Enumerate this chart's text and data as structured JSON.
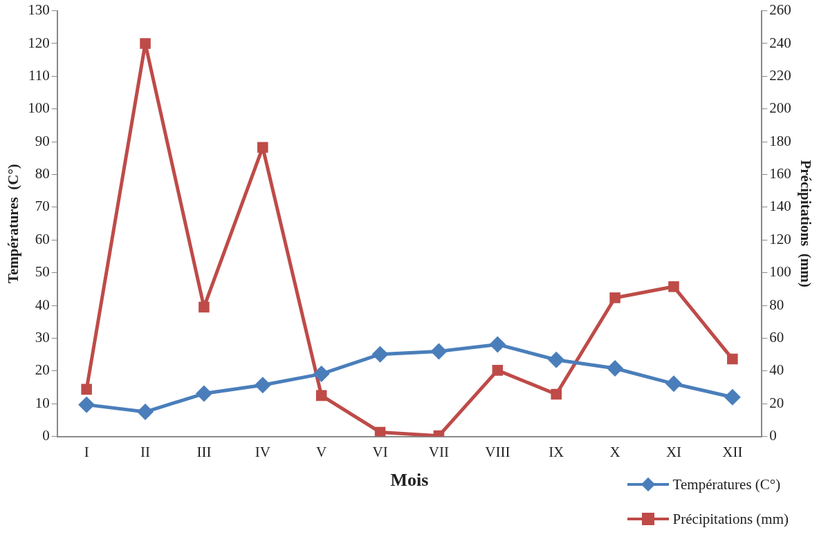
{
  "chart_data": {
    "type": "line",
    "xlabel": "Mois",
    "ylabel": "Températures  (C°)",
    "y2label": "Précipitations  (mm)",
    "categories": [
      "I",
      "II",
      "III",
      "IV",
      "V",
      "VI",
      "VII",
      "VIII",
      "IX",
      "X",
      "XI",
      "XII"
    ],
    "series": [
      {
        "name": "Températures (C°)",
        "color": "#4a7ebb",
        "marker": "diamond",
        "values": [
          9.7,
          7.5,
          13.1,
          15.7,
          19.1,
          25.1,
          26.0,
          28.1,
          23.4,
          20.8,
          16.1,
          12.0
        ]
      },
      {
        "name": "Précipitations (mm)",
        "color": "#be4b48",
        "marker": "square",
        "axis": "y2",
        "values": [
          28.8,
          240,
          79,
          176.6,
          25,
          2.6,
          0.4,
          40.4,
          25.8,
          84.7,
          91.5,
          47.3
        ]
      }
    ],
    "ylim": [
      0,
      130
    ],
    "yticks": [
      0,
      10,
      20,
      30,
      40,
      50,
      60,
      70,
      80,
      90,
      100,
      110,
      120,
      130
    ],
    "y2lim": [
      0,
      260
    ],
    "y2ticks": [
      0,
      20,
      40,
      60,
      80,
      100,
      120,
      140,
      160,
      180,
      200,
      220,
      240,
      260
    ],
    "grid": false,
    "legend": "bottom right",
    "line_style": "solid"
  }
}
